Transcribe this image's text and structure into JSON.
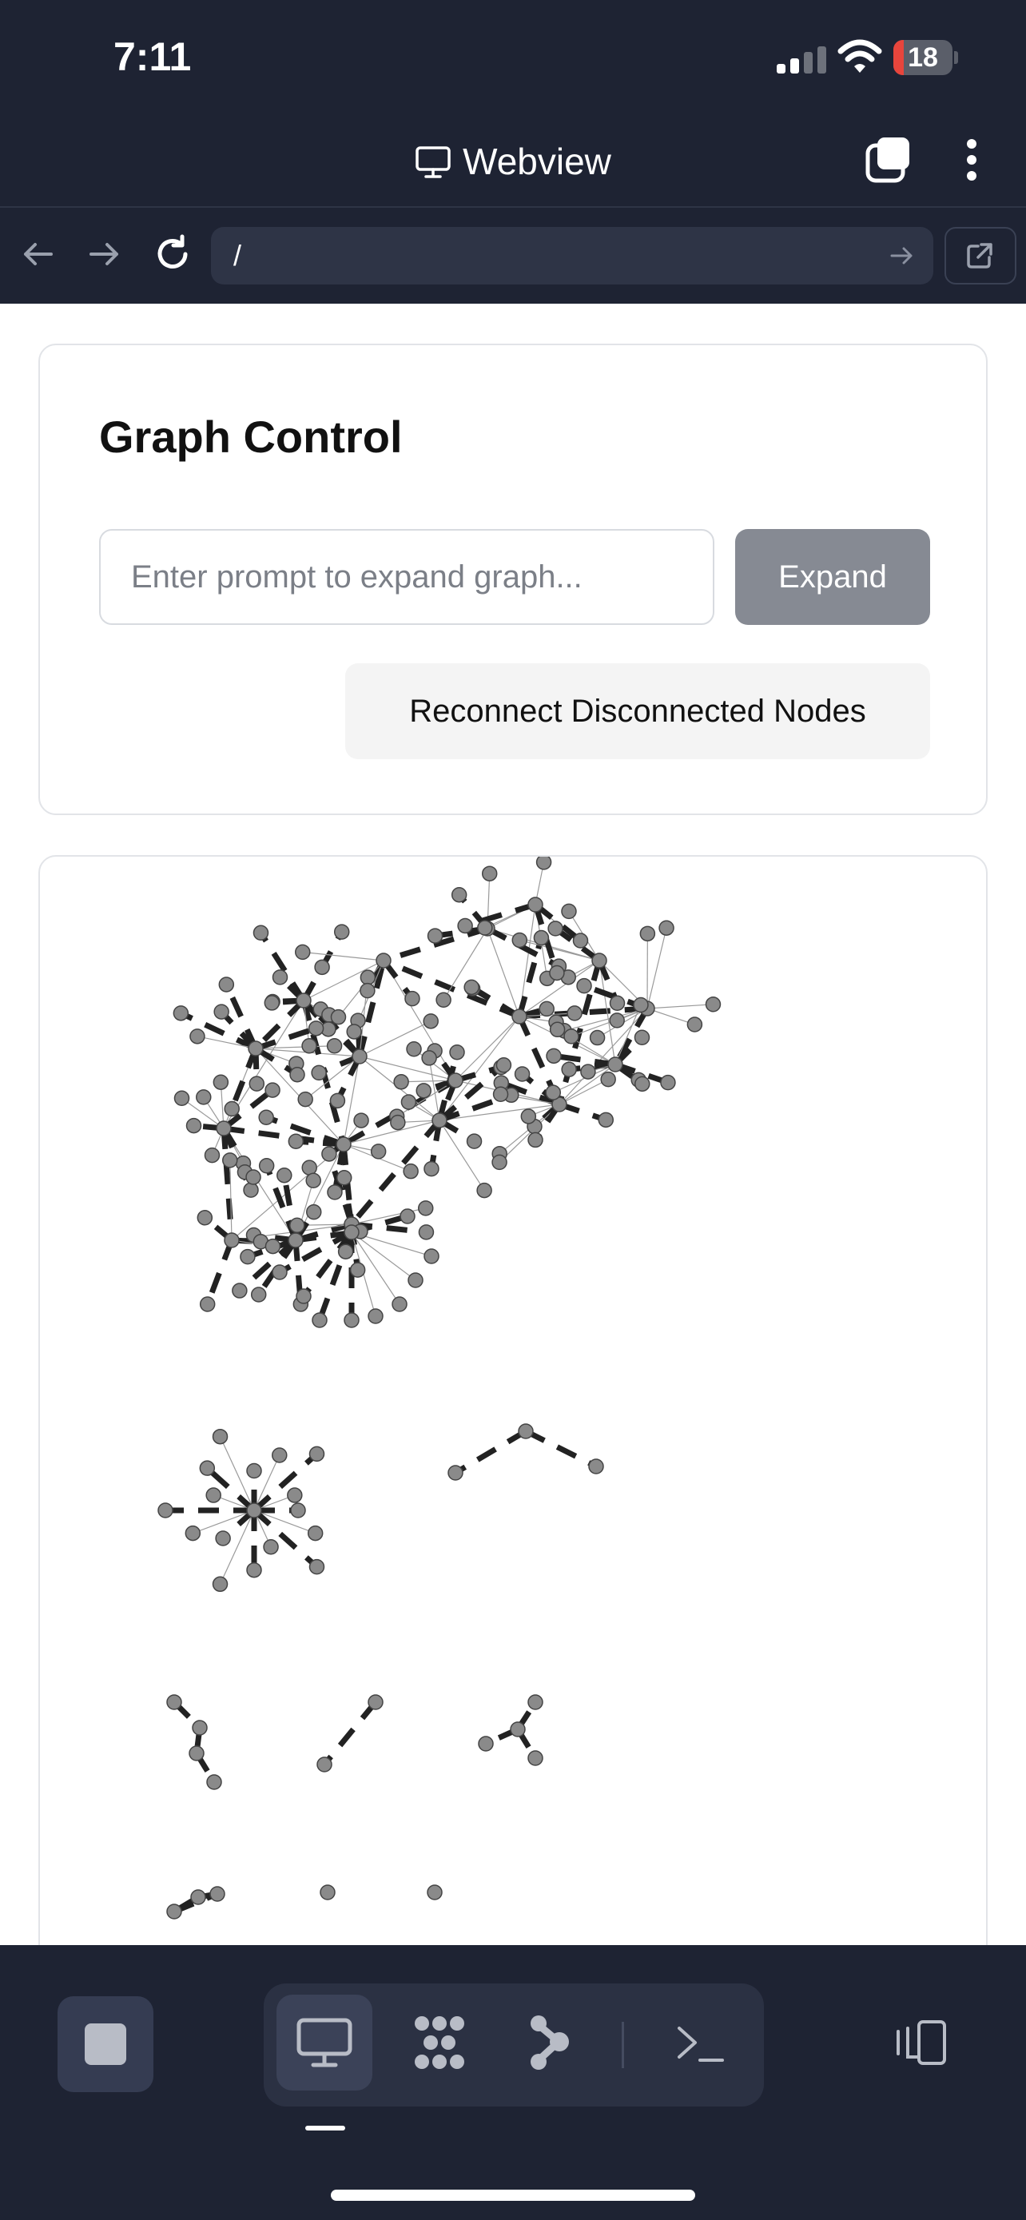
{
  "status_bar": {
    "time": "7:11",
    "battery": "18",
    "battery_level": 0.18
  },
  "webview": {
    "title": "Webview"
  },
  "address_bar": {
    "url": "/"
  },
  "graph_control": {
    "title": "Graph Control",
    "prompt_placeholder": "Enter prompt to expand graph...",
    "expand_label": "Expand",
    "reconnect_label": "Reconnect Disconnected Nodes"
  },
  "colors": {
    "chrome": "#1e2333",
    "node_fill": "#8a8a8a",
    "edge": "#222222",
    "button_disabled": "#868a93"
  },
  "icons": {
    "title": "monitor-icon",
    "tabs": "tabs-icon",
    "menu": "kebab-menu-icon",
    "back": "arrow-left-icon",
    "forward": "arrow-right-icon",
    "reload": "reload-icon",
    "go": "arrow-right-icon",
    "open_external": "external-link-icon",
    "stop": "stop-icon",
    "modes": [
      "monitor-icon",
      "grid-icon",
      "branch-icon",
      "terminal-icon"
    ],
    "panel": "device-panel-icon"
  },
  "bottom_toolbar": {
    "active_mode": "monitor"
  }
}
